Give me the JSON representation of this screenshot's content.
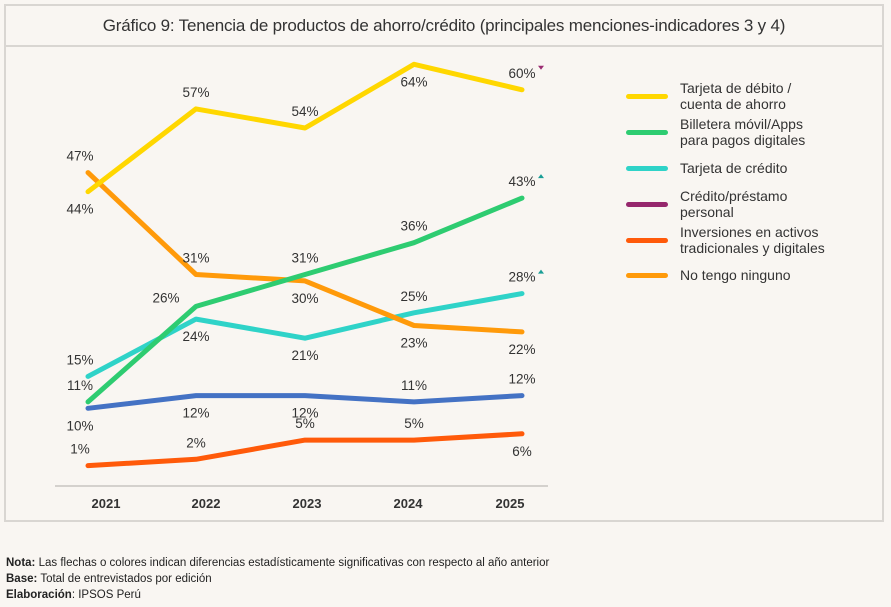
{
  "chart_data": {
    "type": "line",
    "title": "Gráfico 9: Tenencia de productos de ahorro/crédito (principales menciones-indicadores 3 y 4)",
    "xlabel": "",
    "ylabel": "",
    "ylim": [
      0,
      70
    ],
    "grid": false,
    "legend_position": "right",
    "categories": [
      "2021",
      "2022",
      "2023",
      "2024",
      "2025"
    ],
    "series": [
      {
        "name": "Tarjeta de débito / cuenta de ahorro",
        "color": "#ffd700",
        "values": [
          44,
          57,
          54,
          64,
          60
        ],
        "labels": [
          "44%",
          "57%",
          "54%",
          "64%",
          "60%"
        ],
        "label_pos": [
          "below",
          "above",
          "above",
          "below",
          "above"
        ],
        "significance": [
          null,
          null,
          null,
          null,
          "down"
        ],
        "significance_color": "#9b2c72"
      },
      {
        "name": "Billetera móvil/Apps para pagos digitales",
        "color": "#2ecc71",
        "values": [
          11,
          26,
          31,
          36,
          43
        ],
        "labels": [
          "11%",
          "26%",
          "31%",
          "36%",
          "43%"
        ],
        "label_pos": [
          "above",
          "above-left",
          "above",
          "above",
          "above"
        ],
        "significance": [
          null,
          null,
          null,
          null,
          "up"
        ],
        "significance_color": "#1a9e96"
      },
      {
        "name": "Tarjeta de crédito",
        "color": "#2fd3c8",
        "values": [
          15,
          24,
          21,
          25,
          28
        ],
        "labels": [
          "15%",
          "24%",
          "21%",
          "25%",
          "28%"
        ],
        "label_pos": [
          "above",
          "below",
          "below",
          "above",
          "above"
        ],
        "significance": [
          null,
          null,
          null,
          null,
          "up"
        ],
        "significance_color": "#1a9e96"
      },
      {
        "name": "Crédito/préstamo personal",
        "color": "#4472c4",
        "legend_color": "#96276d",
        "values": [
          10,
          12,
          12,
          11,
          12
        ],
        "labels": [
          "10%",
          "12%",
          "12%",
          "11%",
          "12%"
        ],
        "label_pos": [
          "below",
          "below",
          "below",
          "above",
          "above"
        ],
        "significance": [
          null,
          null,
          null,
          null,
          null
        ]
      },
      {
        "name": "Inversiones en activos tradicionales y digitales",
        "color": "#ff5a0a",
        "values": [
          1,
          2,
          5,
          5,
          6
        ],
        "labels": [
          "1%",
          "2%",
          "5%",
          "5%",
          "6%"
        ],
        "label_pos": [
          "above",
          "above",
          "above",
          "above",
          "below"
        ],
        "significance": [
          null,
          null,
          null,
          null,
          null
        ]
      },
      {
        "name": "No tengo ninguno",
        "color": "#ff9a0a",
        "values": [
          47,
          31,
          30,
          23,
          22
        ],
        "labels": [
          "47%",
          "31%",
          "30%",
          "23%",
          "22%"
        ],
        "label_pos": [
          "above",
          "above",
          "below",
          "below",
          "below"
        ],
        "significance": [
          null,
          null,
          null,
          null,
          null
        ]
      }
    ]
  },
  "legend": {
    "items": [
      {
        "label_line1": "Tarjeta de débito /",
        "label_line2": "cuenta de ahorro",
        "color": "#ffd700"
      },
      {
        "label_line1": "Billetera móvil/Apps",
        "label_line2": "para pagos digitales",
        "color": "#2ecc71"
      },
      {
        "label_line1": "Tarjeta de crédito",
        "label_line2": "",
        "color": "#2fd3c8"
      },
      {
        "label_line1": "Crédito/préstamo",
        "label_line2": "personal",
        "color": "#96276d"
      },
      {
        "label_line1": "Inversiones en activos",
        "label_line2": "tradicionales y digitales",
        "color": "#ff5a0a"
      },
      {
        "label_line1": "No tengo ninguno",
        "label_line2": "",
        "color": "#ff9a0a"
      }
    ]
  },
  "notes": {
    "nota_label": "Nota:",
    "nota_text": " Las flechas o colores indican diferencias estadísticamente significativas con respecto al año anterior",
    "base_label": "Base:",
    "base_text": " Total de entrevistados por edición",
    "elab_label": "Elaboración",
    "elab_text": ": IPSOS Perú"
  }
}
